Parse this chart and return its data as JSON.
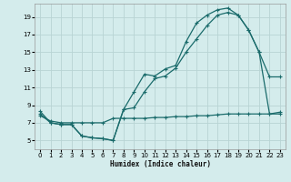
{
  "xlabel": "Humidex (Indice chaleur)",
  "bg_color": "#d4ecec",
  "grid_color": "#b8d4d4",
  "line_color": "#1a6b6b",
  "xlim": [
    -0.5,
    23.5
  ],
  "ylim": [
    4.0,
    20.5
  ],
  "xticks": [
    0,
    1,
    2,
    3,
    4,
    5,
    6,
    7,
    8,
    9,
    10,
    11,
    12,
    13,
    14,
    15,
    16,
    17,
    18,
    19,
    20,
    21,
    22,
    23
  ],
  "yticks": [
    5,
    7,
    9,
    11,
    13,
    15,
    17,
    19
  ],
  "series1_x": [
    0,
    1,
    2,
    3,
    4,
    5,
    6,
    7,
    8,
    9,
    10,
    11,
    12,
    13,
    14,
    15,
    16,
    17,
    18,
    19,
    20,
    21,
    22,
    23
  ],
  "series1_y": [
    8.3,
    7.0,
    6.8,
    6.8,
    5.5,
    5.3,
    5.2,
    5.0,
    8.5,
    10.5,
    12.5,
    12.3,
    13.1,
    13.5,
    16.2,
    18.3,
    19.2,
    19.8,
    20.0,
    19.2,
    17.5,
    15.0,
    12.2,
    12.2
  ],
  "series2_x": [
    0,
    1,
    2,
    3,
    4,
    5,
    6,
    7,
    8,
    9,
    10,
    11,
    12,
    13,
    14,
    15,
    16,
    17,
    18,
    19,
    20,
    21,
    22,
    23
  ],
  "series2_y": [
    8.0,
    7.0,
    6.8,
    6.8,
    5.5,
    5.3,
    5.2,
    5.0,
    8.5,
    8.7,
    10.5,
    12.0,
    12.3,
    13.2,
    15.0,
    16.5,
    18.0,
    19.2,
    19.5,
    19.2,
    17.5,
    15.0,
    8.0,
    8.0
  ],
  "series3_x": [
    0,
    1,
    2,
    3,
    4,
    5,
    6,
    7,
    8,
    9,
    10,
    11,
    12,
    13,
    14,
    15,
    16,
    17,
    18,
    19,
    20,
    21,
    22,
    23
  ],
  "series3_y": [
    7.8,
    7.2,
    7.0,
    7.0,
    7.0,
    7.0,
    7.0,
    7.5,
    7.5,
    7.5,
    7.5,
    7.6,
    7.6,
    7.7,
    7.7,
    7.8,
    7.8,
    7.9,
    8.0,
    8.0,
    8.0,
    8.0,
    8.0,
    8.2
  ]
}
